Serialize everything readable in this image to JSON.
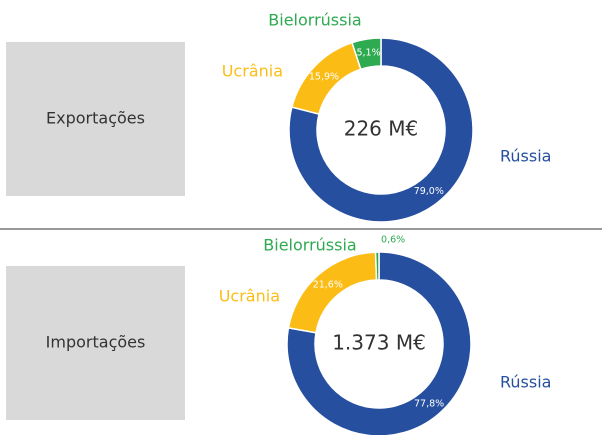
{
  "chart_data": [
    {
      "type": "donut",
      "title": "Exportações",
      "center_text": "226 M€",
      "series": [
        {
          "name": "Rússia",
          "color": "#264f9f",
          "values": [
            79.0
          ],
          "value_labels": [
            "79,0%"
          ]
        },
        {
          "name": "Ucrânia",
          "color": "#fbbd15",
          "values": [
            15.9
          ],
          "value_labels": [
            "15,9%"
          ]
        },
        {
          "name": "Bielorrússia",
          "color": "#2eaa50",
          "values": [
            5.1
          ],
          "value_labels": [
            "5,1%"
          ]
        }
      ]
    },
    {
      "type": "donut",
      "title": "Importações",
      "center_text": "1.373 M€",
      "series": [
        {
          "name": "Rússia",
          "color": "#264f9f",
          "values": [
            77.8
          ],
          "value_labels": [
            "77,8%"
          ]
        },
        {
          "name": "Ucrânia",
          "color": "#fbbd15",
          "values": [
            21.6
          ],
          "value_labels": [
            "21,6%"
          ]
        },
        {
          "name": "Bielorrússia",
          "color": "#2eaa50",
          "values": [
            0.6
          ],
          "value_labels": [
            "0,6%"
          ]
        }
      ]
    }
  ]
}
